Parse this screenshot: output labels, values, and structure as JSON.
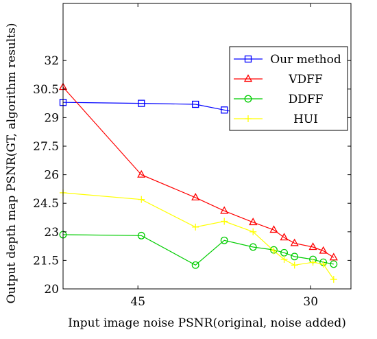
{
  "chart_data": {
    "type": "line",
    "title": "",
    "xlabel": "Input image noise PSNR(original, noise added)",
    "ylabel": "Output depth map PSNR(GT, algorithm results)",
    "x_reversed": true,
    "xlim": [
      51.5,
      26.5
    ],
    "ylim": [
      20,
      35
    ],
    "x_ticks": [
      45,
      30
    ],
    "x_tick_labels": [
      "45",
      "30"
    ],
    "y_ticks": [
      20,
      21.5,
      23,
      24.5,
      26,
      27.5,
      29,
      30.5,
      32
    ],
    "y_tick_labels": [
      "20",
      "21.5",
      "23",
      "24.5",
      "26",
      "27.5",
      "29",
      "30.5",
      "32"
    ],
    "grid": false,
    "legend_position": "top-right",
    "series": [
      {
        "name": "Our method",
        "color": "#0000ff",
        "marker": "square",
        "points": [
          [
            51.5,
            29.8
          ],
          [
            44.7,
            29.75
          ],
          [
            40.0,
            29.7
          ],
          [
            37.5,
            29.4
          ],
          [
            35.0,
            29.1
          ],
          [
            33.2,
            29.1
          ],
          [
            32.3,
            28.75
          ],
          [
            31.4,
            28.8
          ],
          [
            29.8,
            29.05
          ],
          [
            28.9,
            29.1
          ],
          [
            28.0,
            28.9
          ]
        ]
      },
      {
        "name": "VDFF",
        "color": "#ff0000",
        "marker": "triangle",
        "points": [
          [
            51.5,
            30.6
          ],
          [
            44.7,
            26.0
          ],
          [
            40.0,
            24.8
          ],
          [
            37.5,
            24.1
          ],
          [
            35.0,
            23.5
          ],
          [
            33.2,
            23.1
          ],
          [
            32.3,
            22.7
          ],
          [
            31.4,
            22.4
          ],
          [
            29.8,
            22.2
          ],
          [
            28.9,
            22.0
          ],
          [
            28.0,
            21.65
          ]
        ]
      },
      {
        "name": "DDFF",
        "color": "#00cc00",
        "marker": "circle",
        "points": [
          [
            51.5,
            22.85
          ],
          [
            44.7,
            22.8
          ],
          [
            40.0,
            21.25
          ],
          [
            37.5,
            22.55
          ],
          [
            35.0,
            22.2
          ],
          [
            33.2,
            22.05
          ],
          [
            32.3,
            21.9
          ],
          [
            31.4,
            21.7
          ],
          [
            29.8,
            21.55
          ],
          [
            28.9,
            21.4
          ],
          [
            28.0,
            21.3
          ]
        ]
      },
      {
        "name": "HUI",
        "color": "#ffff00",
        "marker": "plus",
        "points": [
          [
            51.5,
            25.05
          ],
          [
            44.7,
            24.7
          ],
          [
            40.0,
            23.25
          ],
          [
            37.5,
            23.55
          ],
          [
            35.0,
            23.0
          ],
          [
            33.2,
            22.0
          ],
          [
            32.3,
            21.55
          ],
          [
            31.4,
            21.25
          ],
          [
            29.8,
            21.4
          ],
          [
            28.9,
            21.3
          ],
          [
            28.0,
            20.5
          ]
        ]
      }
    ]
  }
}
